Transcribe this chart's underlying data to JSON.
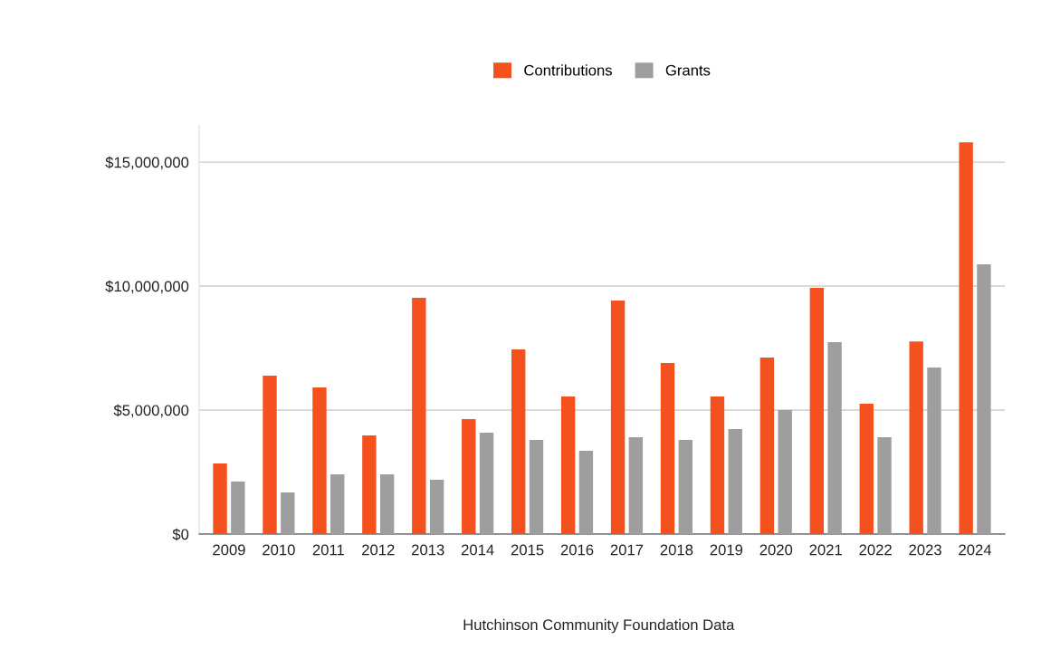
{
  "chart_data": {
    "type": "bar",
    "annotations": [
      "Hutchinson Community Foundation Data"
    ],
    "categories": [
      "2009",
      "2010",
      "2011",
      "2012",
      "2013",
      "2014",
      "2015",
      "2016",
      "2017",
      "2018",
      "2019",
      "2020",
      "2021",
      "2022",
      "2023",
      "2024"
    ],
    "series": [
      {
        "name": "Contributions",
        "color": "#f4511e",
        "values": [
          2850000,
          6390000,
          5910000,
          3980000,
          9530000,
          4640000,
          7450000,
          5550000,
          9420000,
          6900000,
          5550000,
          7120000,
          9930000,
          5260000,
          7770000,
          15800000
        ]
      },
      {
        "name": "Grants",
        "color": "#9e9e9e",
        "values": [
          2120000,
          1680000,
          2410000,
          2410000,
          2190000,
          4090000,
          3800000,
          3360000,
          3910000,
          3800000,
          4230000,
          5000000,
          7740000,
          3910000,
          6720000,
          10880000
        ]
      }
    ],
    "ylim": [
      0,
      16500000
    ],
    "yticks": [
      {
        "value": 0,
        "label": "$0"
      },
      {
        "value": 5000000,
        "label": "$5,000,000"
      },
      {
        "value": 10000000,
        "label": "$10,000,000"
      },
      {
        "value": 15000000,
        "label": "$15,000,000"
      }
    ],
    "grid": "y",
    "legend": "top"
  }
}
